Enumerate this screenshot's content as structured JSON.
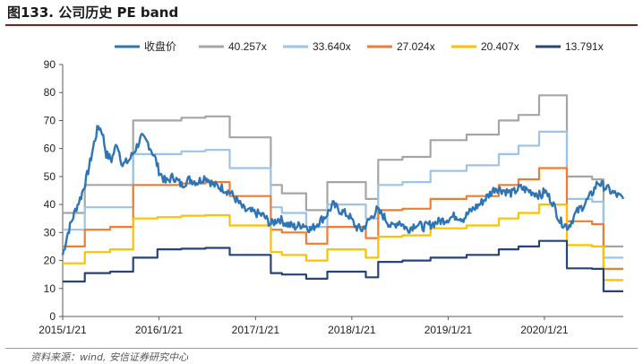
{
  "figure": {
    "title": "图133. 公司历史 PE band",
    "source": "资料来源：wind, 安信证券研究中心"
  },
  "colors": {
    "price": "#2e75b6",
    "band_40": "#a5a5a5",
    "band_33": "#9dc3e6",
    "band_27": "#ed7d31",
    "band_20": "#ffc000",
    "band_13": "#264478",
    "axis": "#595959"
  },
  "chart_data": {
    "type": "line",
    "title": "",
    "xlabel": "",
    "ylabel": "",
    "ylim": [
      0,
      90
    ],
    "y_ticks": [
      "0",
      "10",
      "20",
      "30",
      "40",
      "50",
      "60",
      "70",
      "80",
      "90"
    ],
    "x_ticks": [
      "2015/1/21",
      "2016/1/21",
      "2017/1/21",
      "2018/1/21",
      "2019/1/21",
      "2020/1/21"
    ],
    "x_range": [
      "2015-01-21",
      "2020-11-15"
    ],
    "legend_position": "top",
    "series": [
      {
        "name": "收盘价",
        "color_key": "price",
        "style": "noisy",
        "points": [
          [
            "2015-01-21",
            22
          ],
          [
            "2015-02-10",
            30
          ],
          [
            "2015-03-10",
            38
          ],
          [
            "2015-04-01",
            43
          ],
          [
            "2015-04-20",
            49
          ],
          [
            "2015-05-05",
            55
          ],
          [
            "2015-05-20",
            62
          ],
          [
            "2015-06-05",
            68
          ],
          [
            "2015-06-20",
            66
          ],
          [
            "2015-07-05",
            58
          ],
          [
            "2015-07-25",
            56
          ],
          [
            "2015-08-15",
            62
          ],
          [
            "2015-09-05",
            54
          ],
          [
            "2015-10-01",
            56
          ],
          [
            "2015-10-25",
            60
          ],
          [
            "2015-11-15",
            64
          ],
          [
            "2015-12-10",
            62
          ],
          [
            "2016-01-05",
            57
          ],
          [
            "2016-01-21",
            52
          ],
          [
            "2016-02-15",
            48
          ],
          [
            "2016-03-15",
            50
          ],
          [
            "2016-04-15",
            47
          ],
          [
            "2016-05-15",
            49
          ],
          [
            "2016-06-15",
            48
          ],
          [
            "2016-07-15",
            50
          ],
          [
            "2016-08-15",
            47
          ],
          [
            "2016-09-15",
            46
          ],
          [
            "2016-10-20",
            44
          ],
          [
            "2016-11-15",
            41
          ],
          [
            "2016-12-10",
            38
          ],
          [
            "2017-01-21",
            37
          ],
          [
            "2017-02-20",
            36
          ],
          [
            "2017-03-20",
            33
          ],
          [
            "2017-04-20",
            35
          ],
          [
            "2017-05-20",
            33
          ],
          [
            "2017-06-20",
            32
          ],
          [
            "2017-07-20",
            33
          ],
          [
            "2017-08-20",
            31
          ],
          [
            "2017-09-20",
            34
          ],
          [
            "2017-10-15",
            36
          ],
          [
            "2017-11-10",
            40
          ],
          [
            "2017-12-05",
            38
          ],
          [
            "2018-01-10",
            36
          ],
          [
            "2018-02-05",
            32
          ],
          [
            "2018-03-01",
            31
          ],
          [
            "2018-04-01",
            35
          ],
          [
            "2018-04-25",
            38
          ],
          [
            "2018-05-20",
            36
          ],
          [
            "2018-06-20",
            32
          ],
          [
            "2018-07-20",
            34
          ],
          [
            "2018-08-20",
            31
          ],
          [
            "2018-09-20",
            33
          ],
          [
            "2018-10-20",
            32
          ],
          [
            "2018-11-20",
            33
          ],
          [
            "2018-12-20",
            34
          ],
          [
            "2019-01-21",
            35
          ],
          [
            "2019-02-20",
            36
          ],
          [
            "2019-03-20",
            35
          ],
          [
            "2019-04-20",
            38
          ],
          [
            "2019-05-20",
            40
          ],
          [
            "2019-06-20",
            43
          ],
          [
            "2019-07-20",
            46
          ],
          [
            "2019-08-20",
            45
          ],
          [
            "2019-09-20",
            44
          ],
          [
            "2019-10-20",
            46
          ],
          [
            "2019-11-20",
            45
          ],
          [
            "2019-12-20",
            44
          ],
          [
            "2020-01-10",
            43
          ],
          [
            "2020-01-21",
            45
          ],
          [
            "2020-02-20",
            41
          ],
          [
            "2020-03-20",
            34
          ],
          [
            "2020-04-20",
            32
          ],
          [
            "2020-05-20",
            37
          ],
          [
            "2020-06-20",
            40
          ],
          [
            "2020-07-20",
            44
          ],
          [
            "2020-08-10",
            48
          ],
          [
            "2020-09-10",
            46
          ],
          [
            "2020-10-10",
            44
          ],
          [
            "2020-11-15",
            42
          ]
        ]
      },
      {
        "name": "40.257x",
        "color_key": "band_40",
        "style": "step",
        "points": [
          [
            "2015-01-21",
            37
          ],
          [
            "2015-04-15",
            47
          ],
          [
            "2015-07-20",
            47
          ],
          [
            "2015-10-15",
            70
          ],
          [
            "2016-01-15",
            70
          ],
          [
            "2016-04-15",
            71
          ],
          [
            "2016-07-15",
            71.5
          ],
          [
            "2016-10-15",
            64
          ],
          [
            "2017-03-20",
            47
          ],
          [
            "2017-05-01",
            44
          ],
          [
            "2017-08-01",
            38
          ],
          [
            "2017-10-20",
            48
          ],
          [
            "2018-01-01",
            48
          ],
          [
            "2018-03-15",
            42
          ],
          [
            "2018-05-01",
            56
          ],
          [
            "2018-08-01",
            57
          ],
          [
            "2018-11-15",
            63
          ],
          [
            "2019-04-01",
            65
          ],
          [
            "2019-08-01",
            70
          ],
          [
            "2019-10-15",
            72
          ],
          [
            "2020-01-01",
            79
          ],
          [
            "2020-04-15",
            50
          ],
          [
            "2020-07-20",
            49
          ],
          [
            "2020-09-01",
            25
          ],
          [
            "2020-11-15",
            25
          ]
        ]
      },
      {
        "name": "33.640x",
        "color_key": "band_33",
        "style": "step",
        "points": [
          [
            "2015-01-21",
            31
          ],
          [
            "2015-04-15",
            39
          ],
          [
            "2015-07-20",
            39
          ],
          [
            "2015-10-15",
            58
          ],
          [
            "2016-01-15",
            58
          ],
          [
            "2016-04-15",
            59
          ],
          [
            "2016-07-15",
            59.5
          ],
          [
            "2016-10-15",
            53
          ],
          [
            "2017-03-20",
            39
          ],
          [
            "2017-05-01",
            37
          ],
          [
            "2017-08-01",
            32
          ],
          [
            "2017-10-20",
            40
          ],
          [
            "2018-01-01",
            40
          ],
          [
            "2018-03-15",
            35
          ],
          [
            "2018-05-01",
            47
          ],
          [
            "2018-08-01",
            48
          ],
          [
            "2018-11-15",
            52
          ],
          [
            "2019-04-01",
            54
          ],
          [
            "2019-08-01",
            58
          ],
          [
            "2019-10-15",
            61
          ],
          [
            "2020-01-01",
            66
          ],
          [
            "2020-04-15",
            42
          ],
          [
            "2020-07-20",
            41
          ],
          [
            "2020-09-01",
            21
          ],
          [
            "2020-11-15",
            21
          ]
        ]
      },
      {
        "name": "27.024x",
        "color_key": "band_27",
        "style": "step",
        "points": [
          [
            "2015-01-21",
            25
          ],
          [
            "2015-04-15",
            31
          ],
          [
            "2015-07-20",
            32
          ],
          [
            "2015-10-15",
            47
          ],
          [
            "2016-01-15",
            47
          ],
          [
            "2016-04-15",
            47.5
          ],
          [
            "2016-07-15",
            48
          ],
          [
            "2016-10-15",
            43
          ],
          [
            "2017-03-20",
            31
          ],
          [
            "2017-05-01",
            30
          ],
          [
            "2017-08-01",
            26
          ],
          [
            "2017-10-20",
            32
          ],
          [
            "2018-01-01",
            32
          ],
          [
            "2018-03-15",
            28
          ],
          [
            "2018-05-01",
            38
          ],
          [
            "2018-08-01",
            38.5
          ],
          [
            "2018-11-15",
            42
          ],
          [
            "2019-04-01",
            43
          ],
          [
            "2019-08-01",
            47
          ],
          [
            "2019-10-15",
            49
          ],
          [
            "2020-01-01",
            53
          ],
          [
            "2020-04-15",
            34
          ],
          [
            "2020-07-20",
            33
          ],
          [
            "2020-09-01",
            17
          ],
          [
            "2020-11-15",
            17
          ]
        ]
      },
      {
        "name": "20.407x",
        "color_key": "band_20",
        "style": "step",
        "points": [
          [
            "2015-01-21",
            19
          ],
          [
            "2015-04-15",
            23
          ],
          [
            "2015-07-20",
            24
          ],
          [
            "2015-10-15",
            35
          ],
          [
            "2016-01-15",
            35.5
          ],
          [
            "2016-04-15",
            36
          ],
          [
            "2016-07-15",
            36.2
          ],
          [
            "2016-10-15",
            32.5
          ],
          [
            "2017-03-20",
            23
          ],
          [
            "2017-05-01",
            22
          ],
          [
            "2017-08-01",
            20
          ],
          [
            "2017-10-20",
            24
          ],
          [
            "2018-01-01",
            24
          ],
          [
            "2018-03-15",
            21
          ],
          [
            "2018-05-01",
            28.5
          ],
          [
            "2018-08-01",
            29
          ],
          [
            "2018-11-15",
            31.5
          ],
          [
            "2019-04-01",
            32.5
          ],
          [
            "2019-08-01",
            35
          ],
          [
            "2019-10-15",
            37
          ],
          [
            "2020-01-01",
            40
          ],
          [
            "2020-04-15",
            25.5
          ],
          [
            "2020-07-20",
            25
          ],
          [
            "2020-09-01",
            13
          ],
          [
            "2020-11-15",
            13
          ]
        ]
      },
      {
        "name": "13.791x",
        "color_key": "band_13",
        "style": "step",
        "points": [
          [
            "2015-01-21",
            12.5
          ],
          [
            "2015-04-15",
            15.5
          ],
          [
            "2015-07-20",
            16
          ],
          [
            "2015-10-15",
            21
          ],
          [
            "2016-01-15",
            24
          ],
          [
            "2016-04-15",
            24.2
          ],
          [
            "2016-07-15",
            24.5
          ],
          [
            "2016-10-15",
            22
          ],
          [
            "2017-03-20",
            15.5
          ],
          [
            "2017-05-01",
            15
          ],
          [
            "2017-08-01",
            13.5
          ],
          [
            "2017-10-20",
            16
          ],
          [
            "2018-01-01",
            16
          ],
          [
            "2018-03-15",
            14
          ],
          [
            "2018-05-01",
            19.5
          ],
          [
            "2018-08-01",
            20
          ],
          [
            "2018-11-15",
            21
          ],
          [
            "2019-04-01",
            22
          ],
          [
            "2019-08-01",
            24
          ],
          [
            "2019-10-15",
            25
          ],
          [
            "2020-01-01",
            27
          ],
          [
            "2020-04-15",
            17.2
          ],
          [
            "2020-07-20",
            17
          ],
          [
            "2020-09-01",
            9
          ],
          [
            "2020-11-15",
            9
          ]
        ]
      }
    ]
  }
}
